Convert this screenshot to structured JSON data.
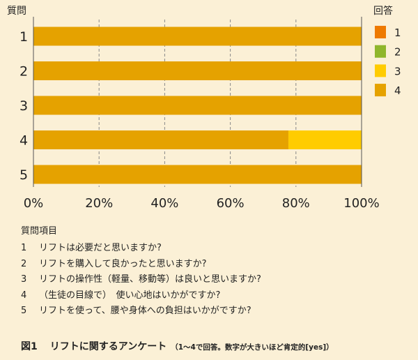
{
  "chart_data": {
    "type": "bar",
    "orientation": "horizontal",
    "stacked": true,
    "y_axis_title": "質問",
    "legend_title": "回答",
    "categories": [
      "1",
      "2",
      "3",
      "4",
      "5"
    ],
    "series": [
      {
        "name": "1",
        "color": "#ee7a00",
        "values": [
          0,
          0,
          0,
          0,
          0
        ]
      },
      {
        "name": "2",
        "color": "#8fb62b",
        "values": [
          0,
          0,
          0,
          0,
          0
        ]
      },
      {
        "name": "3",
        "color": "#ffcc00",
        "values": [
          0,
          0,
          0,
          22.3,
          0
        ]
      },
      {
        "name": "4",
        "color": "#e5a200",
        "values": [
          100,
          100,
          100,
          77.7,
          100
        ]
      }
    ],
    "xlim": [
      0,
      100
    ],
    "xticks": [
      "0%",
      "20%",
      "40%",
      "60%",
      "80%",
      "100%"
    ],
    "grid": true,
    "legend_position": "right"
  },
  "questions": {
    "title": "質問項目",
    "items": [
      {
        "num": "1",
        "text": "リフトは必要だと思いますか?"
      },
      {
        "num": "2",
        "text": "リフトを購入して良かったと思いますか?"
      },
      {
        "num": "3",
        "text": "リフトの操作性（軽量、移動等）は良いと思いますか?"
      },
      {
        "num": "4",
        "text": "（生徒の目線で）　使い心地はいかがですか?"
      },
      {
        "num": "5",
        "text": "リフトを使って、腰や身体への負担はいかがですか?"
      }
    ]
  },
  "caption": {
    "label": "図1",
    "title": "リフトに関するアンケート",
    "note": "（1～4で回答。数字が大きいほど肯定的[yes]）"
  }
}
